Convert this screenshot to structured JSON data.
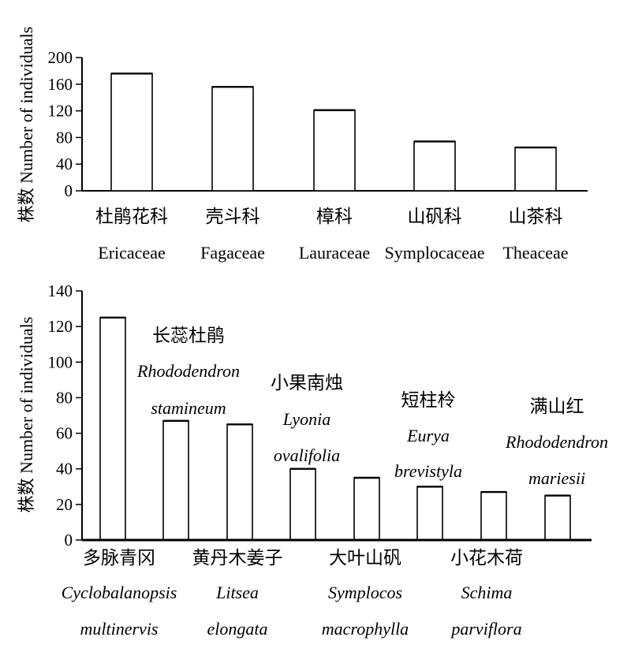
{
  "chart_data": [
    {
      "type": "bar",
      "ylabel": "株数 Number of individuals",
      "ylim": [
        0,
        200
      ],
      "yticks": [
        0,
        40,
        80,
        120,
        160,
        200
      ],
      "categories": [
        {
          "zh": "杜鹃花科",
          "en": "Ericaceae"
        },
        {
          "zh": "壳斗科",
          "en": "Fagaceae"
        },
        {
          "zh": "樟科",
          "en": "Lauraceae"
        },
        {
          "zh": "山矾科",
          "en": "Symplocaceae"
        },
        {
          "zh": "山茶科",
          "en": "Theaceae"
        }
      ],
      "values": [
        176,
        156,
        121,
        74,
        65
      ]
    },
    {
      "type": "bar",
      "ylabel": "株数 Number of individuals",
      "ylim": [
        0,
        140
      ],
      "yticks": [
        0,
        20,
        40,
        60,
        80,
        100,
        120,
        140
      ],
      "categories": [
        {
          "zh": "多脉青冈",
          "en": [
            "Cyclobalanopsis",
            "multinervis"
          ]
        },
        {
          "zh": "长蕊杜鹃",
          "en": [
            "Rhododendron",
            "stamineum"
          ]
        },
        {
          "zh": "黄丹木姜子",
          "en": [
            "Litsea",
            "elongata"
          ]
        },
        {
          "zh": "小果南烛",
          "en": [
            "Lyonia",
            "ovalifolia"
          ]
        },
        {
          "zh": "大叶山矾",
          "en": [
            "Symplocos",
            "macrophylla"
          ]
        },
        {
          "zh": "短柱柃",
          "en": [
            "Eurya",
            "brevistyla"
          ]
        },
        {
          "zh": "小花木荷",
          "en": [
            "Schima",
            "parviflora"
          ]
        },
        {
          "zh": "满山红",
          "en": [
            "Rhododendron",
            "mariesii"
          ]
        }
      ],
      "values": [
        125,
        67,
        65,
        40,
        35,
        30,
        27,
        25
      ]
    }
  ]
}
